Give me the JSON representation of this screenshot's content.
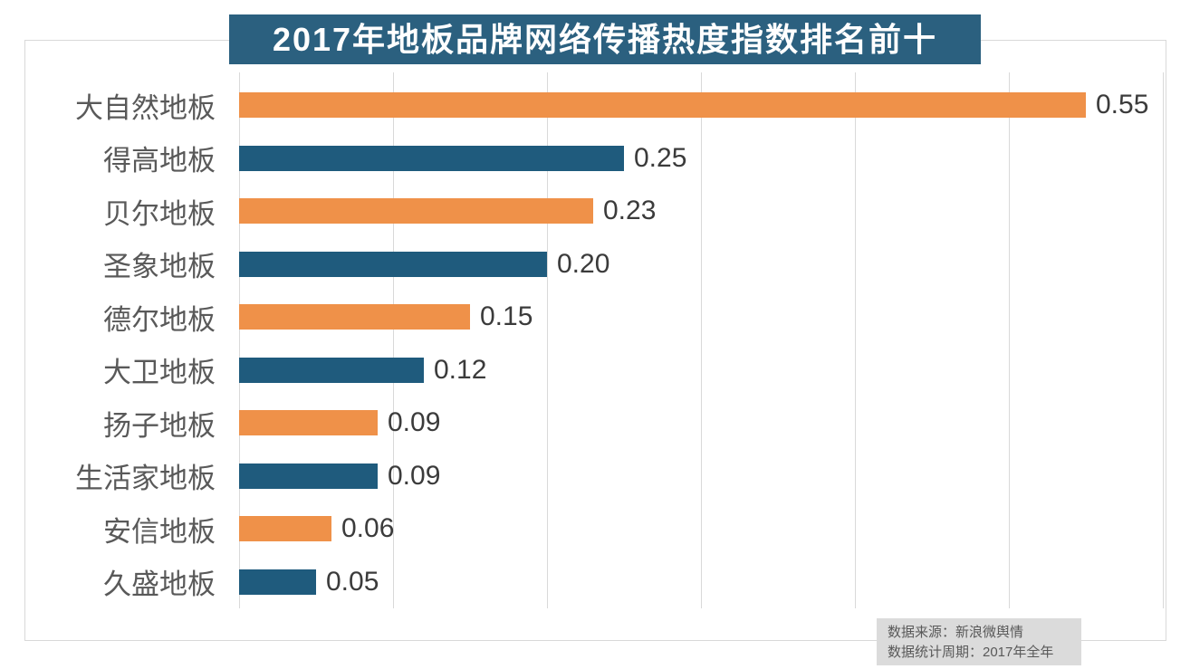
{
  "colors": {
    "orange_bar": "#EF9149",
    "teal_bar": "#1F5B7D",
    "title_bg": "#2B607F",
    "gridline": "#D9D9D9",
    "category_label": "#595959",
    "value_label": "#3B3B3B",
    "source_bg": "#DBDBDB"
  },
  "source_box": {
    "line1": "数据来源：新浪微舆情",
    "line2": "数据统计周期：2017年全年"
  },
  "chart_data": {
    "type": "bar",
    "orientation": "horizontal",
    "title": "2017年地板品牌网络传播热度指数排名前十",
    "categories": [
      "大自然地板",
      "得高地板",
      "贝尔地板",
      "圣象地板",
      "德尔地板",
      "大卫地板",
      "扬子地板",
      "生活家地板",
      "安信地板",
      "久盛地板"
    ],
    "values": [
      0.55,
      0.25,
      0.23,
      0.2,
      0.15,
      0.12,
      0.09,
      0.09,
      0.06,
      0.05
    ],
    "value_labels": [
      "0.55",
      "0.25",
      "0.23",
      "0.20",
      "0.15",
      "0.12",
      "0.09",
      "0.09",
      "0.06",
      "0.05"
    ],
    "xlabel": "",
    "ylabel": "",
    "xlim": [
      0,
      0.6
    ],
    "gridline_interval": 0.1,
    "grid": true,
    "legend": "none",
    "bar_color_pattern": [
      "orange_bar",
      "teal_bar"
    ]
  }
}
